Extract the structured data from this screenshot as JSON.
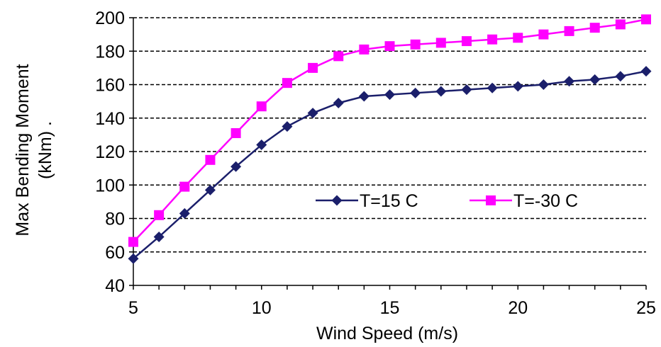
{
  "chart_data": {
    "type": "line",
    "title": "",
    "xlabel": "Wind Speed (m/s)",
    "ylabel_line1": "Max Bending Moment",
    "ylabel_line2": "(kNm) .",
    "xlim": [
      5,
      25
    ],
    "ylim": [
      40,
      200
    ],
    "xticks": [
      5,
      10,
      15,
      20,
      25
    ],
    "yticks": [
      40,
      60,
      80,
      100,
      120,
      140,
      160,
      180,
      200
    ],
    "grid": "horizontal dashed",
    "legend_position": "lower-right",
    "x": [
      5,
      6,
      7,
      8,
      9,
      10,
      11,
      12,
      13,
      14,
      15,
      16,
      17,
      18,
      19,
      20,
      21,
      22,
      23,
      24,
      25
    ],
    "series": [
      {
        "name": "T=15 C",
        "color": "#1b1f6b",
        "marker": "diamond",
        "values": [
          56,
          69,
          83,
          97,
          111,
          124,
          135,
          143,
          149,
          153,
          154,
          155,
          156,
          157,
          158,
          159,
          160,
          162,
          163,
          165,
          168
        ]
      },
      {
        "name": "T=-30 C",
        "color": "#ff00ff",
        "marker": "square",
        "values": [
          66,
          82,
          99,
          115,
          131,
          147,
          161,
          170,
          177,
          181,
          183,
          184,
          185,
          186,
          187,
          188,
          190,
          192,
          194,
          196,
          199
        ]
      }
    ]
  }
}
